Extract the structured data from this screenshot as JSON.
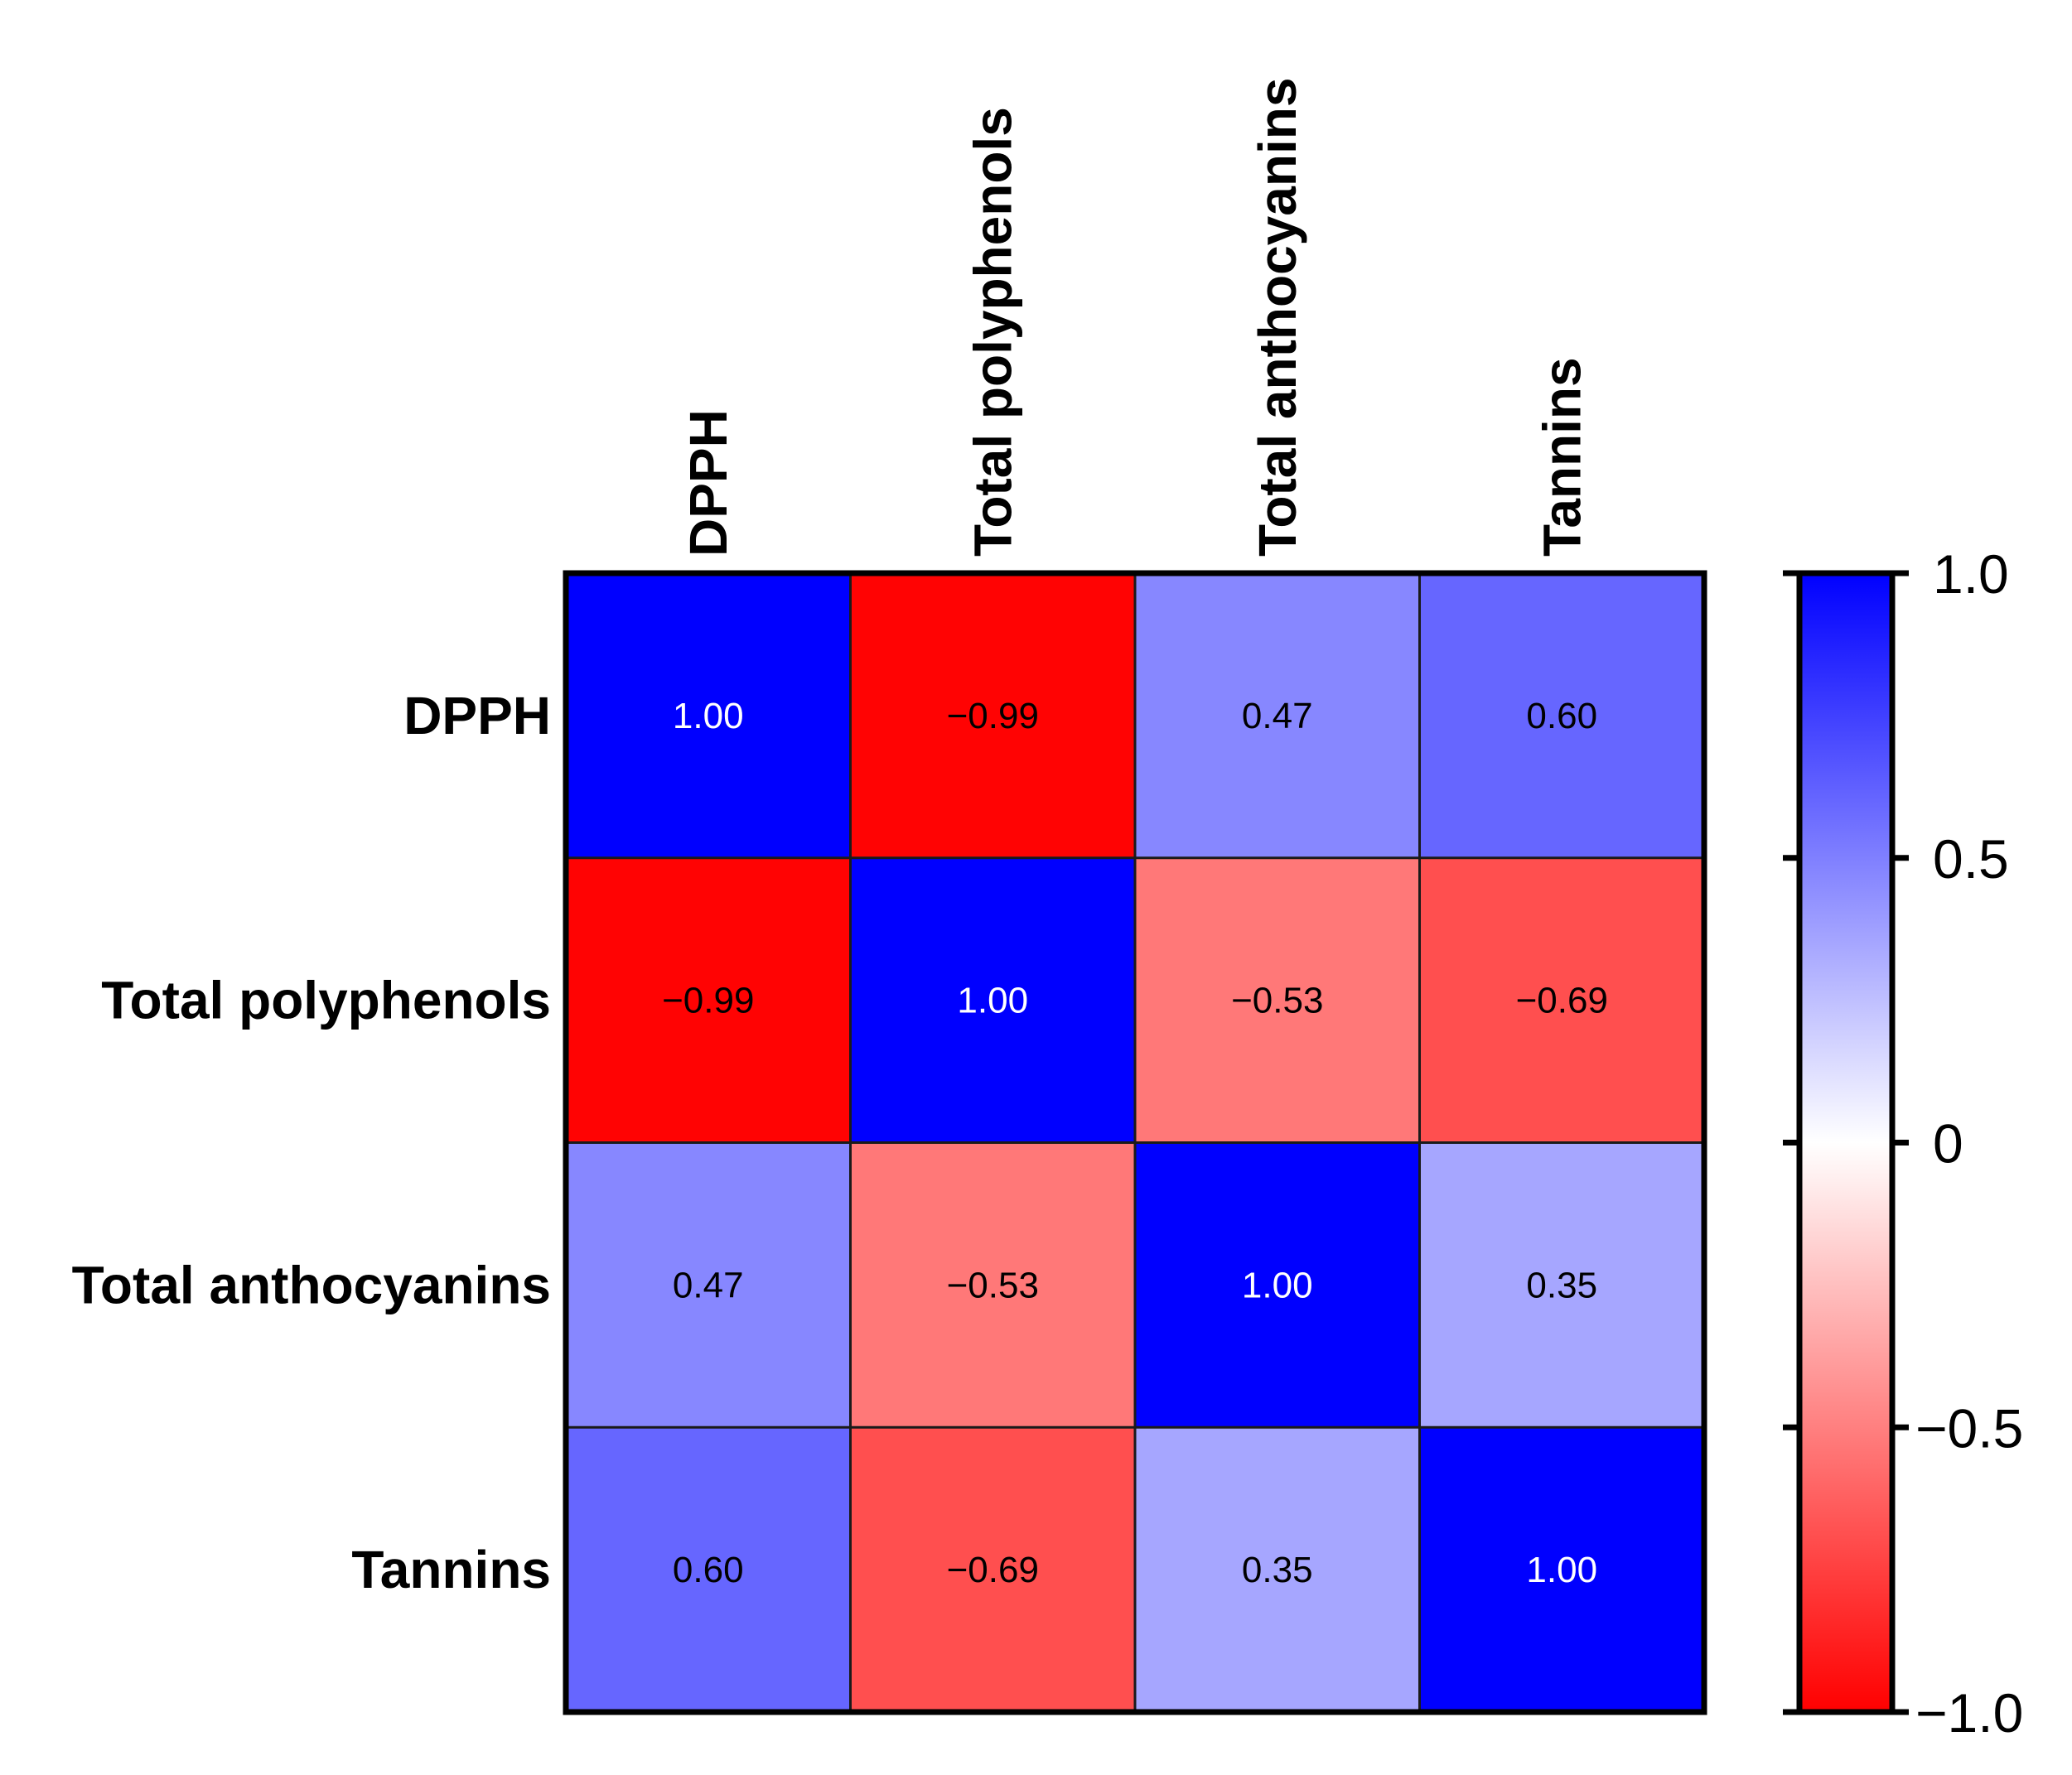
{
  "chart_data": {
    "type": "heatmap",
    "title": "",
    "rows": [
      "DPPH",
      "Total polyphenols",
      "Total anthocyanins",
      "Tannins"
    ],
    "columns": [
      "DPPH",
      "Total polyphenols",
      "Total anthocyanins",
      "Tannins"
    ],
    "values": [
      [
        1.0,
        -0.99,
        0.47,
        0.6
      ],
      [
        -0.99,
        1.0,
        -0.53,
        -0.69
      ],
      [
        0.47,
        -0.53,
        1.0,
        0.35
      ],
      [
        0.6,
        -0.69,
        0.35,
        1.0
      ]
    ],
    "value_labels": [
      [
        "1.00",
        "−0.99",
        "0.47",
        "0.60"
      ],
      [
        "−0.99",
        "1.00",
        "−0.53",
        "−0.69"
      ],
      [
        "0.47",
        "−0.53",
        "1.00",
        "0.35"
      ],
      [
        "0.60",
        "−0.69",
        "0.35",
        "1.00"
      ]
    ],
    "colorbar": {
      "range": [
        -1.0,
        1.0
      ],
      "ticks": [
        1.0,
        0.5,
        0,
        -0.5,
        -1.0
      ],
      "tick_labels": [
        "1.0",
        "0.5",
        "0",
        "−0.5",
        "−1.0"
      ],
      "colors": {
        "positive": "#0000ff",
        "zero": "#ffffff",
        "negative": "#ff0000"
      }
    }
  }
}
